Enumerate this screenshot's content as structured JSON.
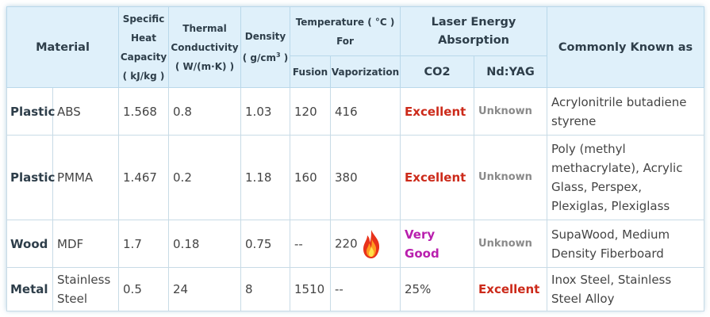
{
  "header": {
    "material": "Material",
    "specific_heat": [
      "Specific",
      "Heat",
      "Capacity",
      "( kJ/kg )"
    ],
    "thermal": [
      "Thermal",
      "Conductivity",
      "( W/(m·K) )"
    ],
    "density": [
      "Density",
      "( g/cm",
      "3",
      " )"
    ],
    "temperature": [
      "Temperature ( °C )",
      "For"
    ],
    "fusion": "Fusion",
    "vaporization": "Vaporization",
    "laser": [
      "Laser Energy",
      "Absorption"
    ],
    "co2": "CO2",
    "ndyag": "Nd:YAG",
    "known_as": "Commonly Known as"
  },
  "rows": [
    {
      "category": "Plastic",
      "name": "ABS",
      "heat": "1.568",
      "thermal": "0.8",
      "density": "1.03",
      "fusion": "120",
      "vaporization": "416",
      "co2": "Excellent",
      "ndyag": "Unknown",
      "known": "Acrylonitrile butadiene styrene"
    },
    {
      "category": "Plastic",
      "name": "PMMA",
      "heat": "1.467",
      "thermal": "0.2",
      "density": "1.18",
      "fusion": "160",
      "vaporization": "380",
      "co2": "Excellent",
      "ndyag": "Unknown",
      "known": "Poly (methyl methacrylate), Acrylic Glass, Perspex, Plexiglas, Plexiglass"
    },
    {
      "category": "Wood",
      "name": "MDF",
      "heat": "1.7",
      "thermal": "0.18",
      "density": "0.75",
      "fusion": "--",
      "vaporization": "220",
      "co2": "Very Good",
      "ndyag": "Unknown",
      "known": "SupaWood, Medium Density Fiberboard"
    },
    {
      "category": "Metal",
      "name": "Stainless Steel",
      "heat": "0.5",
      "thermal": "24",
      "density": "8",
      "fusion": "1510",
      "vaporization": "--",
      "co2": "25%",
      "ndyag": "Excellent",
      "known": "Inox Steel, Stainless Steel Alloy"
    }
  ],
  "icons": {
    "flame": "flame-icon"
  },
  "colors": {
    "header_bg": "#dff0fa",
    "excellent": "#cc2a1a",
    "very_good": "#b91fae",
    "unknown": "#8a8a8a"
  }
}
